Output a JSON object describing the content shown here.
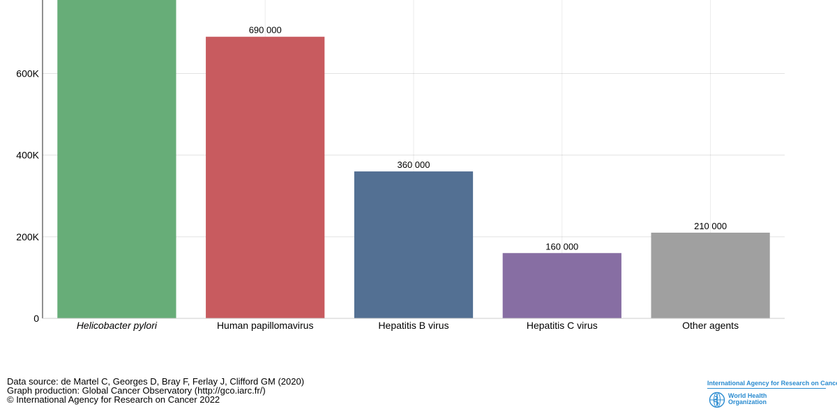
{
  "chart_data": {
    "type": "bar",
    "categories": [
      "Helicobacter pylori",
      "Human papillomavirus",
      "Hepatitis B virus",
      "Hepatitis C virus",
      "Other agents"
    ],
    "values": [
      810000,
      690000,
      360000,
      160000,
      210000
    ],
    "data_labels": [
      "",
      "690 000",
      "360 000",
      "160 000",
      "210 000"
    ],
    "colors": [
      "#67ad78",
      "#c85b5f",
      "#537093",
      "#876ea3",
      "#a0a0a0"
    ],
    "italic_categories": [
      true,
      false,
      false,
      false,
      false
    ],
    "ylim": [
      0,
      780000
    ],
    "yticks": [
      0,
      200000,
      400000,
      600000
    ],
    "ytick_labels": [
      "0",
      "200K",
      "400K",
      "600K"
    ],
    "grid": true,
    "title": "",
    "xlabel": "",
    "ylabel": ""
  },
  "footer": {
    "source_line": "Data source: de Martel C, Georges D, Bray F, Ferlay J, Clifford GM (2020)",
    "production_line": "Graph production: Global Cancer Observatory (http://gco.iarc.fr/)",
    "copyright_line": "© International Agency for Research on Cancer 2022"
  },
  "logo": {
    "iarc_name": "International Agency for Research on Cancer",
    "who_name": "World Health Organization",
    "color": "#2a8bd0"
  }
}
